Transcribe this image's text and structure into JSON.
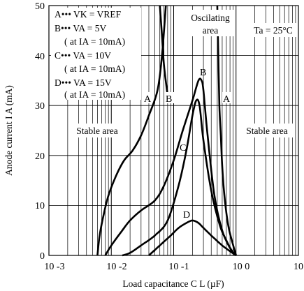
{
  "chart_data": {
    "type": "line",
    "xlabel": "Load capacitance C L (µF)",
    "ylabel": "Anode current I A (mA)",
    "x_scale": "log",
    "xlim": [
      0.001,
      10
    ],
    "ylim": [
      0,
      50
    ],
    "grid": true,
    "x_ticks": [
      "10 -3",
      "10 -2",
      "10 -1",
      "10 0",
      "10"
    ],
    "y_ticks": [
      "0",
      "10",
      "20",
      "30",
      "40",
      "50"
    ],
    "legend": {
      "lines": [
        "A••• VK = VREF",
        "B••• VA = 5V",
        "( at IA = 10mA)",
        "C••• VA = 10V",
        "( at IA = 10mA)",
        "D••• VA = 15V",
        "( at IA = 10mA)"
      ]
    },
    "annotations": {
      "temperature": "Ta = 25°C",
      "oscillating": [
        "Oscilating",
        "area"
      ],
      "stable_left": "Stable area",
      "stable_right": "Stable area"
    },
    "series": [
      {
        "name": "A",
        "x": [
          0.006,
          0.0065,
          0.0075,
          0.009,
          0.012,
          0.016,
          0.022,
          0.03,
          0.04,
          0.055,
          0.065,
          0.075
        ],
        "y": [
          0,
          4,
          8,
          12,
          16,
          19,
          21,
          24,
          28,
          33,
          40,
          50
        ]
      },
      {
        "name": "B",
        "x": [
          0.06,
          0.065,
          0.07,
          0.08
        ],
        "y": [
          50,
          44,
          38,
          32
        ]
      },
      {
        "name": "A",
        "x": [
          0.5,
          0.52,
          0.54,
          0.57,
          0.6,
          0.65,
          0.75,
          0.9,
          1.0
        ],
        "y": [
          50,
          40,
          30,
          24,
          18,
          12,
          6,
          2,
          0
        ]
      },
      {
        "name": "B",
        "x": [
          0.008,
          0.01,
          0.015,
          0.02,
          0.03,
          0.05,
          0.07,
          0.1,
          0.14,
          0.2,
          0.25,
          0.28,
          0.3,
          0.35,
          0.45,
          0.6,
          0.8,
          1.0
        ],
        "y": [
          0,
          2,
          5,
          7,
          9,
          11,
          14,
          19,
          25,
          31,
          35,
          35,
          33,
          24,
          12,
          5,
          1.5,
          0
        ]
      },
      {
        "name": "C",
        "x": [
          0.015,
          0.02,
          0.03,
          0.05,
          0.08,
          0.12,
          0.16,
          0.2,
          0.23,
          0.26,
          0.3,
          0.4,
          0.55,
          0.7,
          0.85,
          1.0
        ],
        "y": [
          0,
          0.5,
          2,
          4,
          7,
          14,
          21,
          28,
          31,
          30,
          23,
          13,
          6,
          3,
          1,
          0
        ]
      },
      {
        "name": "D",
        "x": [
          0.04,
          0.06,
          0.09,
          0.12,
          0.16,
          0.2,
          0.25,
          0.3,
          0.4,
          0.6,
          1.0
        ],
        "y": [
          0,
          2,
          4,
          5.5,
          6.5,
          7,
          6.5,
          5.5,
          4,
          2,
          0
        ]
      }
    ]
  }
}
